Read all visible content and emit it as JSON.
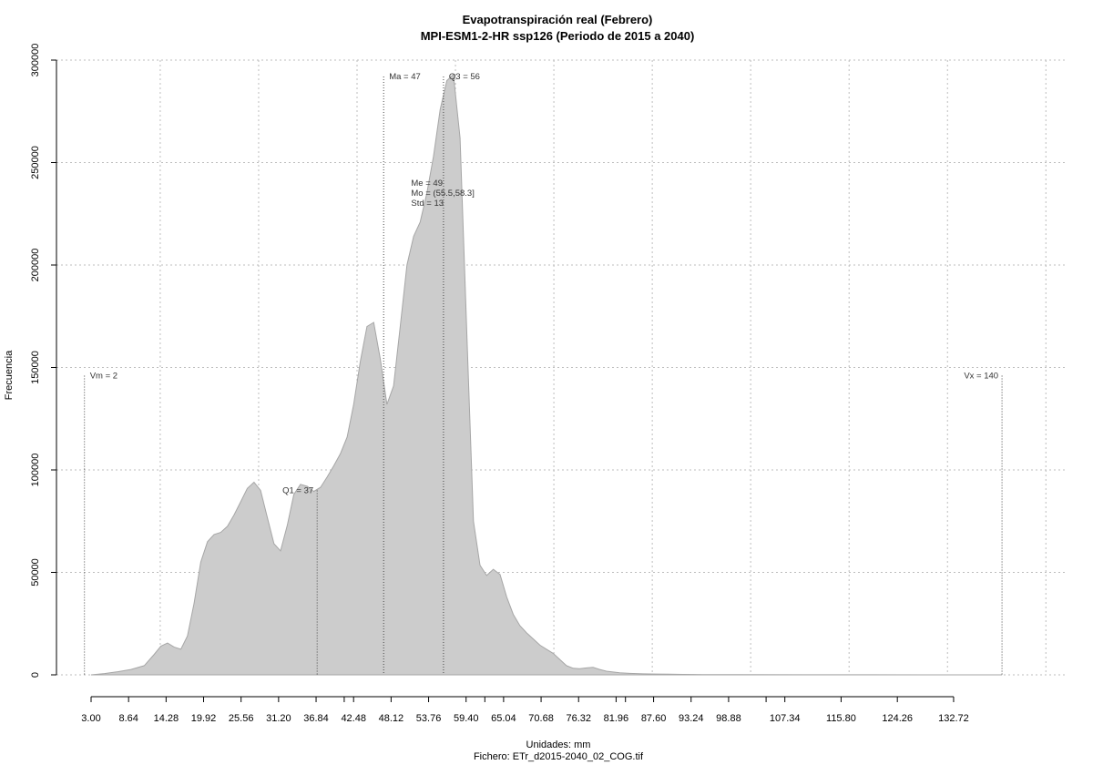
{
  "chart_data": {
    "type": "area",
    "title": "Evapotranspiración real (Febrero)",
    "subtitle": "MPI-ESM1-2-HR ssp126 (Periodo de 2015 a 2040)",
    "xlabel": "Unidades: mm",
    "file_label": "Fichero: ETr_d2015-2040_02_COG.tif",
    "ylabel": "Frecuencia",
    "xlim": [
      0,
      147
    ],
    "ylim": [
      0,
      300000
    ],
    "grid": true,
    "fill_color": "#cccccc",
    "line_color": "#a6a6a6",
    "y_ticks": [
      0,
      50000,
      100000,
      150000,
      200000,
      250000,
      300000
    ],
    "y_tick_labels": [
      "0",
      "50000",
      "100000",
      "150000",
      "200000",
      "250000",
      "300000"
    ],
    "x_ticks": [
      3.0,
      8.64,
      14.28,
      19.92,
      25.56,
      31.2,
      36.84,
      42.48,
      48.12,
      53.76,
      59.4,
      65.04,
      70.68,
      76.32,
      81.96,
      87.6,
      93.24,
      98.88,
      107.34,
      115.8,
      124.26,
      132.72
    ],
    "x_tick_labels": [
      "3.00",
      "8.64",
      "14.28",
      "19.92",
      "25.56",
      "31.20",
      "36.84",
      "42.48",
      "48.12",
      "53.76",
      "59.40",
      "65.04",
      "70.68",
      "76.32",
      "81.96",
      "87.60",
      "93.24",
      "98.88",
      "107.34",
      "115.80",
      "124.26",
      "132.72"
    ],
    "x_minor_ticks": [
      41.07,
      62.22,
      83.37,
      104.52
    ],
    "x_grid": [
      13.4,
      28.2,
      43.0,
      57.8,
      72.6,
      87.4,
      102.2,
      117.0,
      131.8,
      146.6
    ],
    "x": [
      3.0,
      5.0,
      7.0,
      9.0,
      11.0,
      12.5,
      13.5,
      14.5,
      15.5,
      16.5,
      17.5,
      18.5,
      19.5,
      20.5,
      21.5,
      22.5,
      23.5,
      24.5,
      25.5,
      26.5,
      27.5,
      28.5,
      29.5,
      30.5,
      31.5,
      32.5,
      33.5,
      34.5,
      35.5,
      36.5,
      37.5,
      38.5,
      39.5,
      40.5,
      41.5,
      42.5,
      43.5,
      44.5,
      45.5,
      46.5,
      47.5,
      48.5,
      49.5,
      50.5,
      51.5,
      52.5,
      53.5,
      54.5,
      55.5,
      56.5,
      57.5,
      58.5,
      59.5,
      60.5,
      61.5,
      62.5,
      63.5,
      64.5,
      65.5,
      66.5,
      67.5,
      68.5,
      69.5,
      70.5,
      71.5,
      72.5,
      73.5,
      74.5,
      75.5,
      76.5,
      77.5,
      78.5,
      79.5,
      80.5,
      81.5,
      82.5,
      84,
      86,
      88,
      90,
      92,
      95,
      100,
      110,
      120,
      130,
      140
    ],
    "values": [
      0,
      600,
      1500,
      2600,
      4500,
      10000,
      14000,
      15500,
      13500,
      12500,
      19000,
      35000,
      55000,
      65000,
      68500,
      69500,
      72500,
      78000,
      84500,
      91000,
      94000,
      90000,
      77000,
      64000,
      60500,
      73000,
      88000,
      93000,
      92000,
      89500,
      91500,
      96500,
      102000,
      108000,
      116000,
      132000,
      153000,
      170000,
      172000,
      154000,
      132000,
      141000,
      170000,
      200000,
      214000,
      221000,
      235000,
      253000,
      276000,
      290000,
      293000,
      262000,
      167000,
      75000,
      53500,
      48500,
      51500,
      49000,
      38000,
      29500,
      24000,
      20500,
      17500,
      14500,
      12500,
      10500,
      7500,
      4500,
      3200,
      3000,
      3400,
      3700,
      2600,
      1800,
      1400,
      1000,
      700,
      500,
      400,
      300,
      200,
      150,
      100,
      60,
      30,
      10,
      0
    ],
    "markers": [
      {
        "name": "Vm",
        "label": "Vm = 2",
        "x": 2,
        "y": 146000,
        "label_side": "right"
      },
      {
        "name": "Q1",
        "label": "Q1 = 37",
        "x": 37,
        "y": 90000,
        "label_side": "left"
      },
      {
        "name": "Ma",
        "label": "Ma = 47",
        "x": 47,
        "y": 292000,
        "label_side": "right"
      },
      {
        "name": "Q3",
        "label": "Q3 = 56",
        "x": 56,
        "y": 292000,
        "label_side": "right"
      },
      {
        "name": "Vx",
        "label": "Vx = 140",
        "x": 140,
        "y": 146000,
        "label_side": "left"
      }
    ],
    "stats_text": [
      "Me = 49",
      "Mo = (55.5,58.3]",
      "Std = 13"
    ],
    "stats_anchor": {
      "x": 51,
      "y": 240000
    }
  }
}
